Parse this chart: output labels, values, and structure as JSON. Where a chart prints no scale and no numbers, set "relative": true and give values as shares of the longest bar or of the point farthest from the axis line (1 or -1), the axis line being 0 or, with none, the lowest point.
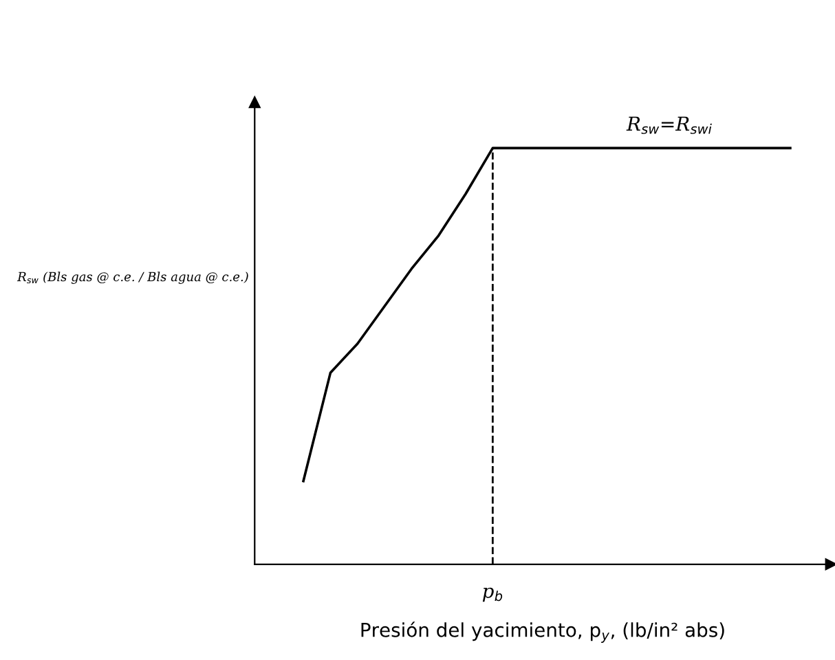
{
  "chart_data": {
    "type": "line",
    "relative": true,
    "xlabel": "Presión del yacimiento, p$_{y}$, (lb/in² abs)",
    "ylabel": "R$_{sw}$ (Bls gas @ c.e. / Bls agua @ c.e.)",
    "categories": [
      null,
      null,
      null,
      null,
      null,
      null,
      null,
      null,
      null,
      null,
      null,
      null,
      null,
      null,
      null,
      null,
      null,
      null,
      null
    ],
    "series": [
      {
        "color": "#000000",
        "values": [
          0.2,
          0.46,
          0.53,
          0.62,
          0.71,
          0.79,
          0.89,
          1.0,
          1.0,
          1.0,
          1.0,
          1.0,
          1.0,
          1.0,
          1.0,
          1.0,
          1.0,
          1.0,
          1.0
        ]
      }
    ],
    "ref_lines": [
      {
        "axis": "x",
        "label": "p$_{b}$",
        "color": "#000000",
        "line_style": "dashed"
      }
    ],
    "annotations": [
      "R$_{sw}$=R$_{swi}$"
    ],
    "line_style": "solid",
    "marker": "none",
    "legend": false,
    "tick_labels": false
  }
}
